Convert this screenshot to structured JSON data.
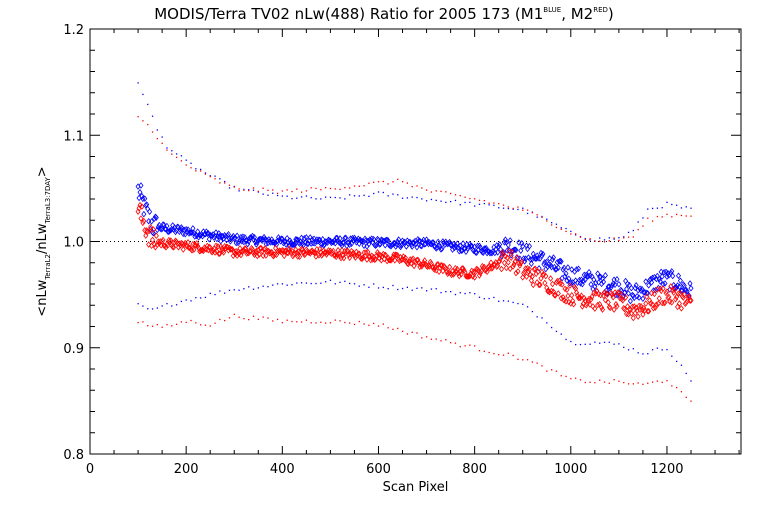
{
  "chart_data": {
    "type": "scatter",
    "title": {
      "main": "MODIS/Terra TV02 nLw(488) Ratio for 2005 173 (M1",
      "sup1": "BLUE",
      "mid": ", M2",
      "sup2": "RED",
      "end": ")"
    },
    "xlabel": "Scan Pixel",
    "ylabel": {
      "part1": "<nLw",
      "sub1": "TerraL2",
      "part2": "/nLw",
      "sub2": "TerraL3:7DAY",
      "part3": ">"
    },
    "xlim": [
      0,
      1354
    ],
    "ylim": [
      0.8,
      1.2
    ],
    "xticks": [
      0,
      200,
      400,
      600,
      800,
      1000,
      1200
    ],
    "xtick_labels": [
      "0",
      "200",
      "400",
      "600",
      "800",
      "1000",
      "1200"
    ],
    "yticks": [
      0.8,
      0.9,
      1.0,
      1.1,
      1.2
    ],
    "ytick_labels": [
      "0.8",
      "0.9",
      "1.0",
      "1.1",
      "1.2"
    ],
    "reference_line": 1.0,
    "series": [
      {
        "color": "#0000ff",
        "marker": "diamond",
        "x_start": 100,
        "x_end": 1250,
        "knots": [
          [
            100,
            1.048
          ],
          [
            115,
            1.03
          ],
          [
            130,
            1.015
          ],
          [
            160,
            1.012
          ],
          [
            200,
            1.01
          ],
          [
            260,
            1.005
          ],
          [
            300,
            1.002
          ],
          [
            400,
            1.0
          ],
          [
            500,
            1.0
          ],
          [
            600,
            0.999
          ],
          [
            700,
            0.998
          ],
          [
            780,
            0.994
          ],
          [
            840,
            0.992
          ],
          [
            870,
            0.997
          ],
          [
            900,
            0.99
          ],
          [
            950,
            0.98
          ],
          [
            1000,
            0.968
          ],
          [
            1050,
            0.962
          ],
          [
            1100,
            0.958
          ],
          [
            1130,
            0.95
          ],
          [
            1160,
            0.957
          ],
          [
            1190,
            0.965
          ],
          [
            1220,
            0.962
          ],
          [
            1250,
            0.952
          ]
        ],
        "upper_band": [
          [
            100,
            1.15
          ],
          [
            110,
            1.14
          ],
          [
            140,
            1.105
          ],
          [
            160,
            1.09
          ],
          [
            200,
            1.075
          ],
          [
            250,
            1.062
          ],
          [
            300,
            1.05
          ],
          [
            400,
            1.042
          ],
          [
            500,
            1.04
          ],
          [
            600,
            1.045
          ],
          [
            700,
            1.04
          ],
          [
            800,
            1.035
          ],
          [
            900,
            1.03
          ],
          [
            950,
            1.02
          ],
          [
            1000,
            1.008
          ],
          [
            1050,
            1.002
          ],
          [
            1100,
            1.003
          ],
          [
            1130,
            1.01
          ],
          [
            1160,
            1.03
          ],
          [
            1200,
            1.035
          ],
          [
            1250,
            1.03
          ]
        ],
        "lower_band": [
          [
            100,
            0.94
          ],
          [
            130,
            0.935
          ],
          [
            160,
            0.94
          ],
          [
            200,
            0.945
          ],
          [
            250,
            0.95
          ],
          [
            300,
            0.955
          ],
          [
            400,
            0.96
          ],
          [
            500,
            0.962
          ],
          [
            600,
            0.958
          ],
          [
            700,
            0.955
          ],
          [
            800,
            0.95
          ],
          [
            900,
            0.94
          ],
          [
            950,
            0.925
          ],
          [
            1000,
            0.905
          ],
          [
            1050,
            0.905
          ],
          [
            1100,
            0.903
          ],
          [
            1150,
            0.895
          ],
          [
            1200,
            0.9
          ],
          [
            1250,
            0.87
          ]
        ]
      },
      {
        "color": "#ff0000",
        "marker": "diamond",
        "x_start": 100,
        "x_end": 1250,
        "knots": [
          [
            100,
            1.03
          ],
          [
            115,
            1.015
          ],
          [
            130,
            1.0
          ],
          [
            160,
            0.998
          ],
          [
            200,
            0.996
          ],
          [
            260,
            0.993
          ],
          [
            300,
            0.99
          ],
          [
            400,
            0.99
          ],
          [
            500,
            0.989
          ],
          [
            600,
            0.986
          ],
          [
            650,
            0.983
          ],
          [
            700,
            0.978
          ],
          [
            750,
            0.972
          ],
          [
            800,
            0.97
          ],
          [
            840,
            0.978
          ],
          [
            870,
            0.985
          ],
          [
            900,
            0.972
          ],
          [
            950,
            0.962
          ],
          [
            1000,
            0.95
          ],
          [
            1050,
            0.945
          ],
          [
            1100,
            0.943
          ],
          [
            1130,
            0.935
          ],
          [
            1160,
            0.94
          ],
          [
            1190,
            0.95
          ],
          [
            1220,
            0.948
          ],
          [
            1250,
            0.94
          ]
        ],
        "upper_band": [
          [
            100,
            1.118
          ],
          [
            130,
            1.105
          ],
          [
            160,
            1.085
          ],
          [
            200,
            1.072
          ],
          [
            250,
            1.06
          ],
          [
            300,
            1.05
          ],
          [
            400,
            1.047
          ],
          [
            500,
            1.05
          ],
          [
            600,
            1.055
          ],
          [
            650,
            1.057
          ],
          [
            700,
            1.048
          ],
          [
            800,
            1.04
          ],
          [
            900,
            1.03
          ],
          [
            950,
            1.02
          ],
          [
            1000,
            1.008
          ],
          [
            1050,
            1.0
          ],
          [
            1100,
            1.002
          ],
          [
            1130,
            1.005
          ],
          [
            1160,
            1.02
          ],
          [
            1200,
            1.025
          ],
          [
            1250,
            1.025
          ]
        ],
        "lower_band": [
          [
            100,
            0.925
          ],
          [
            130,
            0.92
          ],
          [
            160,
            0.92
          ],
          [
            200,
            0.925
          ],
          [
            250,
            0.922
          ],
          [
            300,
            0.93
          ],
          [
            400,
            0.925
          ],
          [
            500,
            0.925
          ],
          [
            600,
            0.922
          ],
          [
            700,
            0.91
          ],
          [
            800,
            0.9
          ],
          [
            900,
            0.89
          ],
          [
            950,
            0.88
          ],
          [
            1000,
            0.87
          ],
          [
            1050,
            0.868
          ],
          [
            1100,
            0.868
          ],
          [
            1150,
            0.865
          ],
          [
            1200,
            0.87
          ],
          [
            1250,
            0.848
          ]
        ]
      }
    ]
  }
}
